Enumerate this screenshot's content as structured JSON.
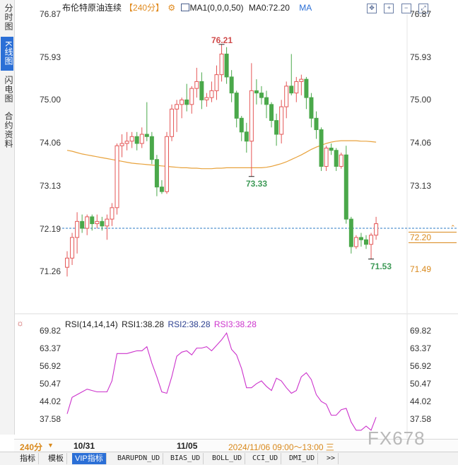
{
  "sidebar": {
    "items": [
      {
        "label": "分时图",
        "active": false
      },
      {
        "label": "K线图",
        "active": true
      },
      {
        "label": "闪电图",
        "active": false
      },
      {
        "label": "合约资料",
        "active": false
      }
    ]
  },
  "header": {
    "instrument": "布伦特原油连续",
    "period_tag": "【240分】",
    "settings_icon": "gear-icon",
    "ma_label": "MA1(0,0,0,50)",
    "ma_value": "MA0:72.20",
    "ma_short": "MA",
    "icons": [
      "expand-icon",
      "zoom-in-icon",
      "zoom-out-icon",
      "fullscreen-icon"
    ]
  },
  "price_axis": {
    "ticks": [
      "76.87",
      "75.93",
      "75.00",
      "74.06",
      "73.13",
      "72.19",
      "71.26"
    ],
    "current_price": "72.20",
    "ma_price": "71.49"
  },
  "annotations": {
    "high": "76.21",
    "mid_low": "73.33",
    "low": "71.53"
  },
  "rsi": {
    "label": "RSI(14,14,14)",
    "rsi1": "RSI1:38.28",
    "rsi2": "RSI2:38.28",
    "rsi3": "RSI3:38.28",
    "ticks": [
      "69.82",
      "63.37",
      "56.92",
      "50.47",
      "44.02",
      "37.58"
    ]
  },
  "x_axis": {
    "period": "240分",
    "date1": "10/31",
    "date2": "11/05",
    "cursor_time": "2024/11/06 09:00～13:00 三"
  },
  "tabs": [
    "指标",
    "模板",
    "VIP指标",
    "BARUPDN_UD",
    "BIAS_UD",
    "BOLL_UD",
    "CCI_UD",
    "DMI_UD",
    ">>"
  ],
  "watermark": "FX678",
  "colors": {
    "up": "#e45656",
    "down": "#4aa84a",
    "ma": "#e8a23c",
    "rsi": "#cc33cc",
    "price_line": "#2b78c4",
    "accent": "#2b6fd6"
  },
  "chart_data": {
    "type": "candlestick",
    "ylim": [
      71.0,
      76.87
    ],
    "candles": [
      {
        "o": 71.35,
        "h": 71.7,
        "l": 71.15,
        "c": 71.55
      },
      {
        "o": 71.55,
        "h": 72.1,
        "l": 71.4,
        "c": 72.0
      },
      {
        "o": 72.0,
        "h": 72.55,
        "l": 71.65,
        "c": 72.35
      },
      {
        "o": 72.35,
        "h": 72.5,
        "l": 72.1,
        "c": 72.2
      },
      {
        "o": 72.2,
        "h": 72.5,
        "l": 72.05,
        "c": 72.45
      },
      {
        "o": 72.45,
        "h": 72.5,
        "l": 72.15,
        "c": 72.3
      },
      {
        "o": 72.3,
        "h": 72.5,
        "l": 72.2,
        "c": 72.35
      },
      {
        "o": 72.35,
        "h": 72.45,
        "l": 72.15,
        "c": 72.25
      },
      {
        "o": 72.25,
        "h": 72.5,
        "l": 71.95,
        "c": 72.4
      },
      {
        "o": 72.4,
        "h": 72.75,
        "l": 72.25,
        "c": 72.65
      },
      {
        "o": 72.65,
        "h": 74.05,
        "l": 72.5,
        "c": 74.0
      },
      {
        "o": 74.0,
        "h": 74.25,
        "l": 73.75,
        "c": 74.05
      },
      {
        "o": 74.05,
        "h": 74.3,
        "l": 73.9,
        "c": 74.1
      },
      {
        "o": 74.1,
        "h": 74.3,
        "l": 73.95,
        "c": 74.2
      },
      {
        "o": 74.2,
        "h": 74.3,
        "l": 73.9,
        "c": 74.05
      },
      {
        "o": 74.05,
        "h": 74.4,
        "l": 73.95,
        "c": 74.25
      },
      {
        "o": 74.25,
        "h": 74.95,
        "l": 74.1,
        "c": 74.2
      },
      {
        "o": 74.2,
        "h": 74.3,
        "l": 73.6,
        "c": 73.7
      },
      {
        "o": 73.7,
        "h": 73.8,
        "l": 72.9,
        "c": 73.1
      },
      {
        "o": 73.1,
        "h": 73.25,
        "l": 72.95,
        "c": 73.0
      },
      {
        "o": 73.0,
        "h": 74.3,
        "l": 72.95,
        "c": 74.2
      },
      {
        "o": 74.2,
        "h": 74.9,
        "l": 74.1,
        "c": 74.8
      },
      {
        "o": 74.8,
        "h": 75.0,
        "l": 74.3,
        "c": 74.9
      },
      {
        "o": 74.9,
        "h": 75.05,
        "l": 74.6,
        "c": 75.0
      },
      {
        "o": 75.0,
        "h": 75.35,
        "l": 74.75,
        "c": 74.9
      },
      {
        "o": 74.9,
        "h": 75.3,
        "l": 74.7,
        "c": 75.25
      },
      {
        "o": 75.25,
        "h": 75.7,
        "l": 75.05,
        "c": 75.4
      },
      {
        "o": 75.4,
        "h": 75.6,
        "l": 74.8,
        "c": 75.0
      },
      {
        "o": 75.0,
        "h": 75.15,
        "l": 74.85,
        "c": 75.05
      },
      {
        "o": 75.05,
        "h": 75.4,
        "l": 74.95,
        "c": 75.2
      },
      {
        "o": 75.2,
        "h": 75.75,
        "l": 75.0,
        "c": 75.55
      },
      {
        "o": 75.55,
        "h": 76.21,
        "l": 75.4,
        "c": 76.0
      },
      {
        "o": 76.0,
        "h": 76.15,
        "l": 75.35,
        "c": 75.5
      },
      {
        "o": 75.5,
        "h": 75.65,
        "l": 74.95,
        "c": 75.15
      },
      {
        "o": 75.15,
        "h": 75.2,
        "l": 74.4,
        "c": 74.6
      },
      {
        "o": 74.6,
        "h": 74.65,
        "l": 74.1,
        "c": 74.3
      },
      {
        "o": 74.3,
        "h": 74.5,
        "l": 73.85,
        "c": 74.1
      },
      {
        "o": 74.1,
        "h": 75.8,
        "l": 73.33,
        "c": 75.2
      },
      {
        "o": 75.2,
        "h": 75.45,
        "l": 74.9,
        "c": 75.15
      },
      {
        "o": 75.15,
        "h": 75.3,
        "l": 74.9,
        "c": 75.05
      },
      {
        "o": 75.05,
        "h": 75.2,
        "l": 74.6,
        "c": 74.9
      },
      {
        "o": 74.9,
        "h": 74.95,
        "l": 74.4,
        "c": 74.55
      },
      {
        "o": 74.55,
        "h": 74.7,
        "l": 74.0,
        "c": 74.25
      },
      {
        "o": 74.25,
        "h": 75.0,
        "l": 74.05,
        "c": 74.85
      },
      {
        "o": 74.85,
        "h": 75.4,
        "l": 74.6,
        "c": 75.3
      },
      {
        "o": 75.3,
        "h": 76.0,
        "l": 75.1,
        "c": 75.15
      },
      {
        "o": 75.15,
        "h": 75.5,
        "l": 74.95,
        "c": 75.4
      },
      {
        "o": 75.4,
        "h": 75.55,
        "l": 75.1,
        "c": 75.45
      },
      {
        "o": 75.45,
        "h": 75.5,
        "l": 74.8,
        "c": 75.05
      },
      {
        "o": 75.05,
        "h": 75.15,
        "l": 74.4,
        "c": 74.6
      },
      {
        "o": 74.6,
        "h": 74.75,
        "l": 74.15,
        "c": 74.35
      },
      {
        "o": 74.35,
        "h": 74.4,
        "l": 73.45,
        "c": 73.55
      },
      {
        "o": 73.55,
        "h": 74.0,
        "l": 73.45,
        "c": 73.95
      },
      {
        "o": 73.95,
        "h": 74.05,
        "l": 73.8,
        "c": 73.9
      },
      {
        "o": 73.9,
        "h": 73.95,
        "l": 73.45,
        "c": 73.55
      },
      {
        "o": 73.55,
        "h": 73.85,
        "l": 73.5,
        "c": 73.8
      },
      {
        "o": 73.8,
        "h": 74.0,
        "l": 72.3,
        "c": 72.4
      },
      {
        "o": 72.4,
        "h": 72.45,
        "l": 71.65,
        "c": 71.8
      },
      {
        "o": 71.8,
        "h": 72.05,
        "l": 71.75,
        "c": 72.0
      },
      {
        "o": 72.0,
        "h": 72.1,
        "l": 71.8,
        "c": 71.95
      },
      {
        "o": 71.95,
        "h": 72.05,
        "l": 71.75,
        "c": 71.85
      },
      {
        "o": 71.85,
        "h": 72.1,
        "l": 71.53,
        "c": 72.05
      },
      {
        "o": 72.05,
        "h": 72.45,
        "l": 71.95,
        "c": 72.3
      }
    ],
    "ma50": [
      73.9,
      73.88,
      73.85,
      73.82,
      73.8,
      73.78,
      73.76,
      73.74,
      73.72,
      73.7,
      73.68,
      73.66,
      73.64,
      73.62,
      73.61,
      73.6,
      73.59,
      73.58,
      73.57,
      73.56,
      73.55,
      73.54,
      73.53,
      73.52,
      73.52,
      73.51,
      73.51,
      73.5,
      73.5,
      73.5,
      73.51,
      73.51,
      73.52,
      73.52,
      73.52,
      73.52,
      73.52,
      73.52,
      73.52,
      73.52,
      73.53,
      73.55,
      73.58,
      73.61,
      73.65,
      73.7,
      73.75,
      73.8,
      73.86,
      73.92,
      73.97,
      74.01,
      74.05,
      74.08,
      74.1,
      74.11,
      74.11,
      74.11,
      74.11,
      74.1,
      74.1,
      74.09,
      74.08
    ],
    "rsi_values": [
      39.5,
      45.5,
      46.5,
      47.5,
      48.5,
      48.0,
      47.5,
      47.5,
      47.5,
      51.5,
      61.5,
      61.5,
      61.5,
      62.0,
      62.5,
      62.5,
      64.0,
      58.0,
      53.0,
      47.5,
      47.0,
      53.0,
      60.5,
      62.0,
      62.5,
      61.0,
      63.5,
      63.5,
      64.0,
      62.5,
      64.5,
      66.5,
      69.0,
      63.0,
      61.0,
      56.0,
      49.0,
      49.0,
      50.5,
      51.5,
      49.5,
      48.0,
      52.5,
      51.5,
      49.0,
      47.0,
      48.0,
      53.0,
      54.5,
      52.0,
      46.5,
      44.0,
      43.0,
      39.0,
      39.0,
      41.0,
      41.5,
      36.5,
      33.5,
      33.5,
      35.0,
      33.5,
      38.28
    ],
    "rsi_ylim": [
      32.0,
      71.0
    ]
  }
}
